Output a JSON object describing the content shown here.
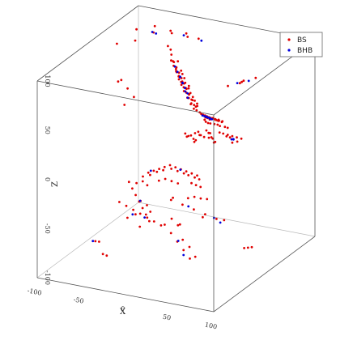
{
  "chart_data": {
    "type": "scatter",
    "dimensions": 3,
    "title": "",
    "xlabel": "X",
    "ylabel": "",
    "zlabel": "Z",
    "xlim": [
      -100,
      100
    ],
    "ylim": [
      -100,
      100
    ],
    "zlim": [
      -100,
      100
    ],
    "x_ticks": [
      "-100",
      "-50",
      "0",
      "50",
      "100"
    ],
    "z_ticks": [
      "-100",
      "-50",
      "0",
      "50",
      "100"
    ],
    "grid": false,
    "box": true,
    "legend_position": "top-right",
    "colors": {
      "BS": "#e00000",
      "BHB": "#0000dd"
    },
    "series": [
      {
        "name": "BS",
        "color": "#e00000",
        "points": [
          [
            -40,
            60,
            70
          ],
          [
            -36,
            58,
            66
          ],
          [
            -32,
            56,
            62
          ],
          [
            -28,
            54,
            58
          ],
          [
            -24,
            52,
            54
          ],
          [
            -20,
            50,
            50
          ],
          [
            -16,
            48,
            46
          ],
          [
            -12,
            46,
            42
          ],
          [
            -8,
            44,
            38
          ],
          [
            -4,
            42,
            34
          ],
          [
            -38,
            62,
            68
          ],
          [
            -34,
            60,
            64
          ],
          [
            -30,
            58,
            60
          ],
          [
            -26,
            56,
            56
          ],
          [
            -22,
            54,
            52
          ],
          [
            -18,
            52,
            48
          ],
          [
            -14,
            50,
            44
          ],
          [
            -10,
            48,
            40
          ],
          [
            -6,
            46,
            36
          ],
          [
            -2,
            44,
            32
          ],
          [
            -42,
            64,
            74
          ],
          [
            -30,
            52,
            66
          ],
          [
            -25,
            49,
            61
          ],
          [
            -20,
            47,
            57
          ],
          [
            -15,
            45,
            52
          ],
          [
            -10,
            43,
            47
          ],
          [
            -5,
            41,
            43
          ],
          [
            0,
            39,
            38
          ],
          [
            -35,
            55,
            72
          ],
          [
            -28,
            50,
            64
          ],
          [
            -22,
            44,
            60
          ],
          [
            -18,
            42,
            56
          ],
          [
            -14,
            40,
            51
          ],
          [
            -9,
            38,
            46
          ],
          [
            -4,
            36,
            41
          ],
          [
            -44,
            66,
            78
          ],
          [
            -46,
            64,
            82
          ],
          [
            -33,
            61,
            70
          ],
          [
            -27,
            57,
            63
          ],
          [
            -21,
            53,
            58
          ],
          [
            -17,
            55,
            50
          ],
          [
            -13,
            51,
            45
          ],
          [
            -7,
            49,
            39
          ],
          [
            -3,
            47,
            35
          ],
          [
            1,
            45,
            30
          ],
          [
            -24,
            60,
            50
          ],
          [
            -19,
            58,
            46
          ],
          [
            -12,
            54,
            40
          ],
          [
            -6,
            52,
            35
          ],
          [
            -29,
            63,
            57
          ],
          [
            10,
            20,
            20
          ],
          [
            14,
            22,
            18
          ],
          [
            18,
            24,
            16
          ],
          [
            22,
            26,
            20
          ],
          [
            26,
            22,
            22
          ],
          [
            30,
            20,
            18
          ],
          [
            34,
            18,
            16
          ],
          [
            16,
            16,
            24
          ],
          [
            24,
            18,
            26
          ],
          [
            20,
            14,
            22
          ],
          [
            -5,
            30,
            10
          ],
          [
            -2,
            28,
            12
          ],
          [
            2,
            26,
            14
          ],
          [
            6,
            24,
            12
          ],
          [
            8,
            22,
            10
          ],
          [
            -8,
            32,
            12
          ],
          [
            12,
            18,
            14
          ],
          [
            28,
            16,
            20
          ],
          [
            32,
            14,
            22
          ],
          [
            36,
            12,
            18
          ],
          [
            40,
            -20,
            60
          ],
          [
            45,
            -25,
            62
          ],
          [
            50,
            -30,
            64
          ],
          [
            55,
            -35,
            66
          ],
          [
            60,
            -40,
            68
          ],
          [
            65,
            -45,
            70
          ],
          [
            70,
            -50,
            72
          ],
          [
            75,
            -55,
            74
          ],
          [
            80,
            -60,
            76
          ],
          [
            85,
            -65,
            78
          ],
          [
            42,
            -15,
            55
          ],
          [
            48,
            -22,
            58
          ],
          [
            54,
            -28,
            60
          ],
          [
            58,
            -34,
            63
          ],
          [
            62,
            -38,
            66
          ],
          [
            66,
            -42,
            69
          ],
          [
            72,
            -48,
            71
          ],
          [
            78,
            -52,
            73
          ],
          [
            82,
            -58,
            75
          ],
          [
            88,
            -62,
            77
          ],
          [
            38,
            -10,
            50
          ],
          [
            44,
            -18,
            52
          ],
          [
            50,
            -24,
            54
          ],
          [
            56,
            -30,
            57
          ],
          [
            64,
            -36,
            60
          ],
          [
            70,
            -40,
            62
          ],
          [
            76,
            -46,
            64
          ],
          [
            84,
            -50,
            66
          ],
          [
            90,
            -55,
            68
          ],
          [
            92,
            -70,
            80
          ],
          [
            55,
            -10,
            40
          ],
          [
            62,
            -15,
            42
          ],
          [
            70,
            -20,
            44
          ],
          [
            78,
            -25,
            46
          ],
          [
            86,
            -30,
            48
          ],
          [
            94,
            -35,
            50
          ],
          [
            60,
            -5,
            35
          ],
          [
            68,
            -12,
            38
          ],
          [
            74,
            -18,
            36
          ],
          [
            82,
            -22,
            40
          ],
          [
            -20,
            -20,
            -10
          ],
          [
            -15,
            -18,
            -8
          ],
          [
            -10,
            -16,
            -6
          ],
          [
            -5,
            -14,
            -4
          ],
          [
            0,
            -12,
            -2
          ],
          [
            5,
            -10,
            -4
          ],
          [
            10,
            -8,
            -6
          ],
          [
            15,
            -6,
            -8
          ],
          [
            20,
            -4,
            -10
          ],
          [
            25,
            -2,
            -12
          ],
          [
            -25,
            -22,
            -14
          ],
          [
            -18,
            -20,
            -12
          ],
          [
            -12,
            -17,
            -9
          ],
          [
            -6,
            -15,
            -7
          ],
          [
            2,
            -13,
            -5
          ],
          [
            8,
            -11,
            -7
          ],
          [
            14,
            -9,
            -9
          ],
          [
            18,
            -7,
            -11
          ],
          [
            24,
            -5,
            -13
          ],
          [
            28,
            -3,
            -15
          ],
          [
            -30,
            -26,
            -20
          ],
          [
            -24,
            -24,
            -18
          ],
          [
            -20,
            -22,
            -22
          ],
          [
            22,
            -8,
            -18
          ],
          [
            26,
            -6,
            -20
          ],
          [
            30,
            -4,
            -22
          ],
          [
            -2,
            -18,
            -14
          ],
          [
            4,
            -16,
            -16
          ],
          [
            10,
            -14,
            -18
          ],
          [
            -8,
            -20,
            -16
          ],
          [
            -40,
            -10,
            -40
          ],
          [
            -35,
            -12,
            -45
          ],
          [
            -30,
            -14,
            -50
          ],
          [
            -25,
            -16,
            -55
          ],
          [
            -20,
            -18,
            -60
          ],
          [
            -45,
            -8,
            -35
          ],
          [
            -50,
            -6,
            -30
          ],
          [
            -38,
            -4,
            -48
          ],
          [
            -28,
            -2,
            -58
          ],
          [
            -33,
            0,
            -53
          ],
          [
            -60,
            20,
            -70
          ],
          [
            -55,
            25,
            -75
          ],
          [
            -50,
            30,
            -80
          ],
          [
            -45,
            35,
            -85
          ],
          [
            -40,
            40,
            -90
          ],
          [
            -65,
            15,
            -65
          ],
          [
            -70,
            10,
            -60
          ],
          [
            -58,
            5,
            -72
          ],
          [
            -48,
            12,
            -82
          ],
          [
            -62,
            28,
            -78
          ],
          [
            10,
            -40,
            -50
          ],
          [
            20,
            -45,
            -55
          ],
          [
            30,
            -50,
            -60
          ],
          [
            40,
            -55,
            -65
          ],
          [
            50,
            -60,
            -70
          ],
          [
            15,
            -35,
            -45
          ],
          [
            25,
            -40,
            -48
          ],
          [
            35,
            -48,
            -58
          ],
          [
            45,
            -52,
            -62
          ],
          [
            55,
            -58,
            -68
          ],
          [
            -10,
            30,
            -60
          ],
          [
            0,
            35,
            -65
          ],
          [
            10,
            40,
            -70
          ],
          [
            20,
            45,
            -75
          ],
          [
            -20,
            25,
            -55
          ],
          [
            -15,
            20,
            -50
          ],
          [
            5,
            15,
            -45
          ],
          [
            15,
            10,
            -40
          ],
          [
            25,
            5,
            -38
          ],
          [
            35,
            0,
            -35
          ],
          [
            -80,
            -20,
            -90
          ],
          [
            -70,
            -30,
            -85
          ],
          [
            -60,
            -40,
            -92
          ],
          [
            -50,
            -50,
            -88
          ],
          [
            60,
            30,
            -92
          ],
          [
            70,
            20,
            -86
          ],
          [
            80,
            10,
            -80
          ],
          [
            -30,
            60,
            -95
          ],
          [
            -10,
            70,
            -88
          ],
          [
            20,
            60,
            -82
          ],
          [
            -85,
            70,
            90
          ],
          [
            -70,
            80,
            92
          ],
          [
            -55,
            85,
            88
          ],
          [
            -40,
            90,
            86
          ],
          [
            -25,
            88,
            84
          ],
          [
            -60,
            60,
            95
          ],
          [
            -45,
            70,
            93
          ],
          [
            -30,
            75,
            90
          ],
          [
            -75,
            50,
            88
          ],
          [
            -90,
            40,
            86
          ],
          [
            30,
            50,
            60
          ],
          [
            40,
            60,
            62
          ],
          [
            50,
            70,
            64
          ],
          [
            35,
            65,
            58
          ],
          [
            45,
            55,
            66
          ],
          [
            -65,
            30,
            40
          ],
          [
            -75,
            35,
            45
          ],
          [
            -85,
            40,
            50
          ],
          [
            -70,
            20,
            35
          ],
          [
            -80,
            25,
            55
          ]
        ]
      },
      {
        "name": "BHB",
        "color": "#0000dd",
        "points": [
          [
            -30,
            55,
            62
          ],
          [
            -26,
            53,
            58
          ],
          [
            -22,
            51,
            54
          ],
          [
            -18,
            49,
            50
          ],
          [
            -14,
            47,
            46
          ],
          [
            -34,
            57,
            66
          ],
          [
            -24,
            50,
            60
          ],
          [
            -20,
            48,
            55
          ],
          [
            -16,
            46,
            48
          ],
          [
            -12,
            44,
            43
          ],
          [
            55,
            -40,
            68
          ],
          [
            60,
            -45,
            70
          ],
          [
            65,
            -50,
            72
          ],
          [
            70,
            -55,
            74
          ],
          [
            50,
            -35,
            66
          ],
          [
            58,
            -42,
            69
          ],
          [
            62,
            -47,
            71
          ],
          [
            68,
            -52,
            73
          ],
          [
            72,
            -58,
            75
          ],
          [
            75,
            -60,
            76
          ],
          [
            80,
            -30,
            45
          ],
          [
            85,
            -35,
            48
          ],
          [
            88,
            -40,
            50
          ],
          [
            -20,
            -15,
            -10
          ],
          [
            10,
            -9,
            -6
          ],
          [
            -35,
            -10,
            -45
          ],
          [
            -50,
            25,
            -78
          ],
          [
            -55,
            10,
            -70
          ],
          [
            30,
            -48,
            -60
          ],
          [
            20,
            40,
            -72
          ],
          [
            -70,
            75,
            88
          ],
          [
            -40,
            85,
            86
          ],
          [
            -20,
            85,
            84
          ],
          [
            -60,
            65,
            92
          ],
          [
            35,
            60,
            60
          ],
          [
            45,
            65,
            62
          ],
          [
            -80,
            -25,
            -88
          ],
          [
            10,
            70,
            -90
          ],
          [
            40,
            -55,
            -70
          ],
          [
            -5,
            33,
            -62
          ]
        ]
      }
    ],
    "legend": [
      "BS",
      "BHB"
    ]
  }
}
